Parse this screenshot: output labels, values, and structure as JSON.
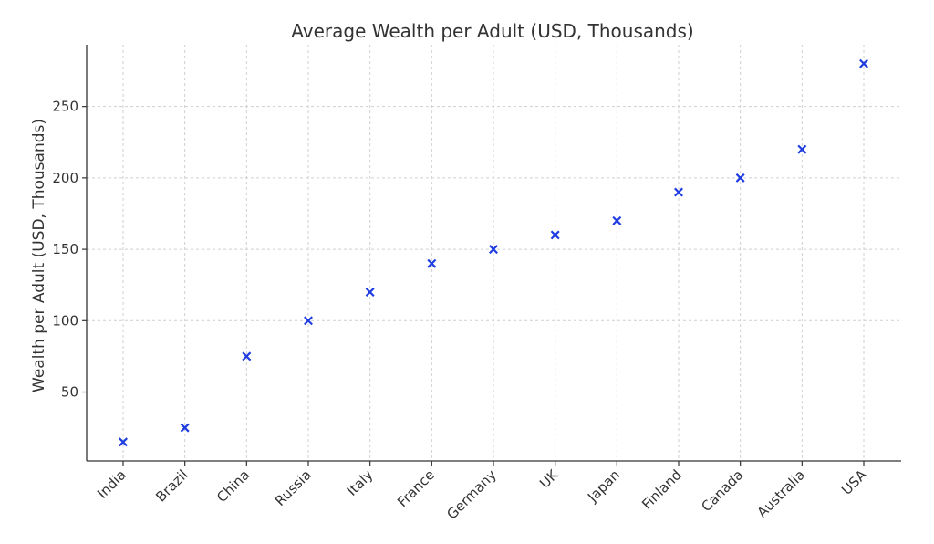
{
  "chart_data": {
    "type": "scatter",
    "title": "Average Wealth per Adult (USD, Thousands)",
    "xlabel": "",
    "ylabel": "Wealth per Adult (USD, Thousands)",
    "categories": [
      "India",
      "Brazil",
      "China",
      "Russia",
      "Italy",
      "France",
      "Germany",
      "UK",
      "Japan",
      "Finland",
      "Canada",
      "Australia",
      "USA"
    ],
    "values": [
      15,
      25,
      75,
      100,
      120,
      140,
      150,
      160,
      170,
      190,
      200,
      220,
      280
    ],
    "yticks": [
      50,
      100,
      150,
      200,
      250
    ],
    "ylim": [
      1.75,
      293.25
    ],
    "marker": "x",
    "marker_color": "#1f3de0",
    "grid": true
  }
}
